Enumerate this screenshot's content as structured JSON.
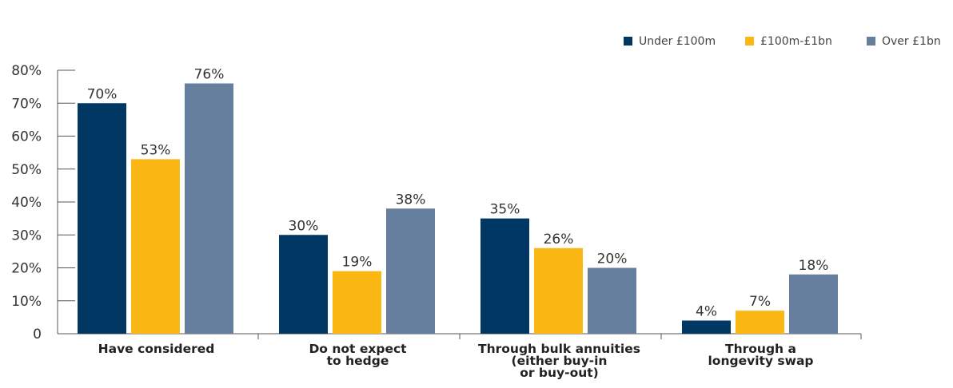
{
  "chart_data": {
    "type": "bar",
    "categories": [
      [
        "Have considered"
      ],
      [
        "Do not expect",
        "to hedge"
      ],
      [
        "Through bulk annuities",
        "(either buy-in",
        "or  buy-out)"
      ],
      [
        "Through a",
        "longevity swap"
      ]
    ],
    "series": [
      {
        "name": "Under £100m",
        "color": "#003763",
        "values": [
          70,
          30,
          35,
          4
        ]
      },
      {
        "name": "£100m-£1bn",
        "color": "#fbb714",
        "values": [
          53,
          19,
          26,
          7
        ]
      },
      {
        "name": "Over £1bn",
        "color": "#677f9e",
        "values": [
          76,
          38,
          20,
          18
        ]
      }
    ],
    "ylim": [
      0,
      80
    ],
    "y_ticks": [
      0,
      10,
      20,
      30,
      40,
      50,
      60,
      70,
      80
    ],
    "y_tick_labels": [
      "0",
      "10%",
      "20%",
      "30%",
      "40%",
      "50%",
      "60%",
      "70%",
      "80%"
    ],
    "value_suffix": "%",
    "legend_position": "top-right",
    "grid": false
  }
}
